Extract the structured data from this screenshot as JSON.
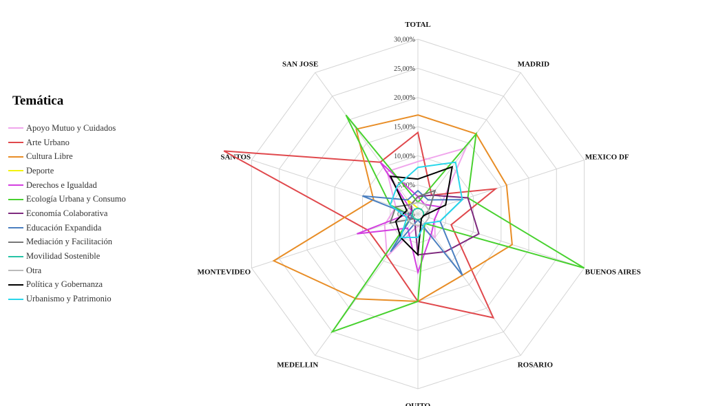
{
  "chart_data": {
    "type": "radar",
    "title": "",
    "axes": [
      "TOTAL",
      "MADRID",
      "MEXICO DF",
      "BUENOS AIRES",
      "ROSARIO",
      "QUITO",
      "MEDELLIN",
      "MONTEVIDEO",
      "SANTOS",
      "SAN JOSE"
    ],
    "rlim": [
      0,
      30
    ],
    "ticks": [
      "0,00%",
      "5,00%",
      "10,00%",
      "15,00%",
      "20,00%",
      "25,00%",
      "30,00%"
    ],
    "grid": true,
    "legend": {
      "title": "Temática",
      "placement": "left"
    },
    "series": [
      {
        "name": "Apoyo Mutuo y Cuidados",
        "color": "#f0a6ec",
        "values": [
          9,
          14,
          4,
          3,
          5,
          2,
          9,
          6,
          4,
          9
        ]
      },
      {
        "name": "Arte Urbano",
        "color": "#e0484c",
        "values": [
          14,
          4,
          14,
          6,
          22,
          15,
          9,
          9,
          35,
          11
        ]
      },
      {
        "name": "Cultura Libre",
        "color": "#e88d26",
        "values": [
          17,
          17,
          16,
          17,
          13,
          15,
          18,
          26,
          8,
          18
        ]
      },
      {
        "name": "Deporte",
        "color": "#f2f20c",
        "values": [
          1,
          1,
          1,
          1,
          1,
          1,
          1,
          1,
          1,
          3
        ]
      },
      {
        "name": "Derechos e Igualdad",
        "color": "#d33ee0",
        "values": [
          3,
          2,
          4,
          3,
          4,
          10,
          3,
          11,
          1,
          11
        ]
      },
      {
        "name": "Ecología Urbana y Consumo",
        "color": "#48d12f",
        "values": [
          2,
          17,
          9,
          30,
          2,
          15,
          25,
          1,
          5,
          21
        ]
      },
      {
        "name": "Economía Colaborativa",
        "color": "#7e2a7e",
        "values": [
          3,
          4,
          9,
          11,
          8,
          7,
          1,
          2,
          1,
          2
        ]
      },
      {
        "name": "Educación Expandida",
        "color": "#4a7fc0",
        "values": [
          4,
          3,
          8,
          4,
          13,
          1,
          8,
          1,
          10,
          3
        ]
      },
      {
        "name": "Mediación y Facilitación",
        "color": "#777777",
        "values": [
          3,
          5,
          2,
          1,
          1,
          1,
          1,
          5,
          4,
          2
        ]
      },
      {
        "name": "Movilidad Sostenible",
        "color": "#26c3a6",
        "values": [
          1,
          1,
          1,
          1,
          1,
          1,
          1,
          1,
          1,
          1
        ]
      },
      {
        "name": "Otra",
        "color": "#bbbbbb",
        "values": [
          2,
          2,
          2,
          2,
          2,
          2,
          2,
          2,
          2,
          2
        ]
      },
      {
        "name": "Política y Gobernanza",
        "color": "#000000",
        "values": [
          6,
          10,
          5,
          1,
          1,
          7,
          5,
          4,
          2,
          8
        ]
      },
      {
        "name": "Urbanismo y Patrimonio",
        "color": "#28d6ea",
        "values": [
          8,
          11,
          8,
          4,
          2,
          4,
          5,
          2,
          5,
          6
        ]
      }
    ]
  }
}
